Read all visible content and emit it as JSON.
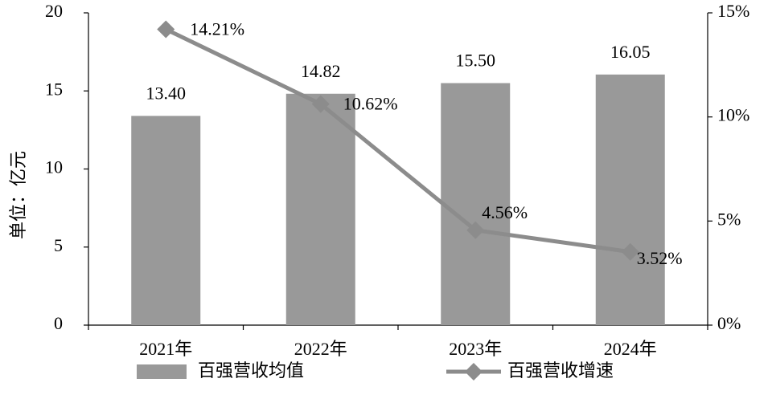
{
  "chart_data": {
    "type": "bar",
    "ylabel": "单位：亿元",
    "categories": [
      "2021年",
      "2022年",
      "2023年",
      "2024年"
    ],
    "series": [
      {
        "name": "百强营收均值",
        "type": "bar",
        "color": "#999999",
        "values": [
          13.4,
          14.82,
          15.5,
          16.05
        ],
        "value_labels": [
          "13.40",
          "14.82",
          "15.50",
          "16.05"
        ]
      },
      {
        "name": "百强营收增速",
        "type": "line",
        "axis": "y2",
        "color": "#8c8c8c",
        "values": [
          14.21,
          10.62,
          4.56,
          3.52
        ],
        "value_labels": [
          "14.21%",
          "10.62%",
          "4.56%",
          "3.52%"
        ]
      }
    ],
    "ylim": [
      0,
      20
    ],
    "yticks": [
      0,
      5,
      10,
      15,
      20
    ],
    "y2lim": [
      0,
      15
    ],
    "y2ticks": [
      {
        "value": 0,
        "label": "0%"
      },
      {
        "value": 5,
        "label": "5%"
      },
      {
        "value": 10,
        "label": "10%"
      },
      {
        "value": 15,
        "label": "15%"
      }
    ],
    "legend": "bottom"
  }
}
